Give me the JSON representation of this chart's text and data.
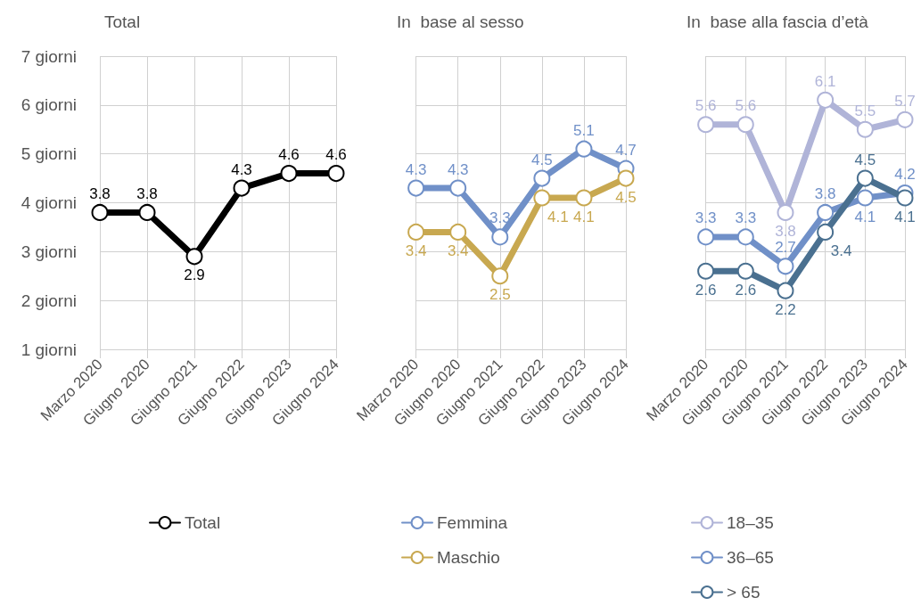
{
  "chart_data": [
    {
      "type": "line",
      "title": "Total",
      "categories": [
        "Marzo 2020",
        "Giugno 2020",
        "Giugno 2021",
        "Giugno 2022",
        "Giugno 2023",
        "Giugno 2024"
      ],
      "series": [
        {
          "name": "Total",
          "color": "#000000",
          "values": [
            3.8,
            3.8,
            2.9,
            4.3,
            4.6,
            4.6
          ]
        }
      ],
      "ylim": [
        1,
        7
      ],
      "yticks": [
        {
          "value": 1,
          "label": "1 giorni"
        },
        {
          "value": 2,
          "label": "2 giorni"
        },
        {
          "value": 3,
          "label": "3 giorni"
        },
        {
          "value": 4,
          "label": "4 giorni"
        },
        {
          "value": 5,
          "label": "5 giorni"
        },
        {
          "value": 6,
          "label": "6 giorni"
        },
        {
          "value": 7,
          "label": "7 giorni"
        }
      ],
      "grid": true,
      "legend": "bottom",
      "marker": "circle",
      "data_labels": true
    },
    {
      "type": "line",
      "title": "In  base al sesso",
      "categories": [
        "Marzo 2020",
        "Giugno 2020",
        "Giugno 2021",
        "Giugno 2022",
        "Giugno 2023",
        "Giugno 2024"
      ],
      "series": [
        {
          "name": "Femmina",
          "color": "#7090c8",
          "values": [
            4.3,
            4.3,
            3.3,
            4.5,
            5.1,
            4.7
          ]
        },
        {
          "name": "Maschio",
          "color": "#c8a850",
          "values": [
            3.4,
            3.4,
            2.5,
            4.1,
            4.1,
            4.5
          ]
        }
      ],
      "ylim": [
        1,
        7
      ],
      "yticks": [
        1,
        2,
        3,
        4,
        5,
        6,
        7
      ],
      "tick_labels": "x",
      "grid": true,
      "legend": "bottom",
      "marker": "circle",
      "data_labels": true
    },
    {
      "type": "line",
      "title": "In  base alla fascia d’età",
      "categories": [
        "Marzo 2020",
        "Giugno 2020",
        "Giugno 2021",
        "Giugno 2022",
        "Giugno 2023",
        "Giugno 2024"
      ],
      "series": [
        {
          "name": "18–35",
          "color": "#b0b4d8",
          "values": [
            5.6,
            5.6,
            3.8,
            6.1,
            5.5,
            5.7
          ]
        },
        {
          "name": "36–65",
          "color": "#7090c8",
          "values": [
            3.3,
            3.3,
            2.7,
            3.8,
            4.1,
            4.2
          ]
        },
        {
          "name": "> 65",
          "color": "#4a7090",
          "values": [
            2.6,
            2.6,
            2.2,
            3.4,
            4.5,
            4.1
          ]
        }
      ],
      "ylim": [
        1,
        7
      ],
      "yticks": [
        1,
        2,
        3,
        4,
        5,
        6,
        7
      ],
      "tick_labels": "x",
      "grid": true,
      "legend": "bottom",
      "marker": "circle",
      "data_labels": true
    }
  ]
}
